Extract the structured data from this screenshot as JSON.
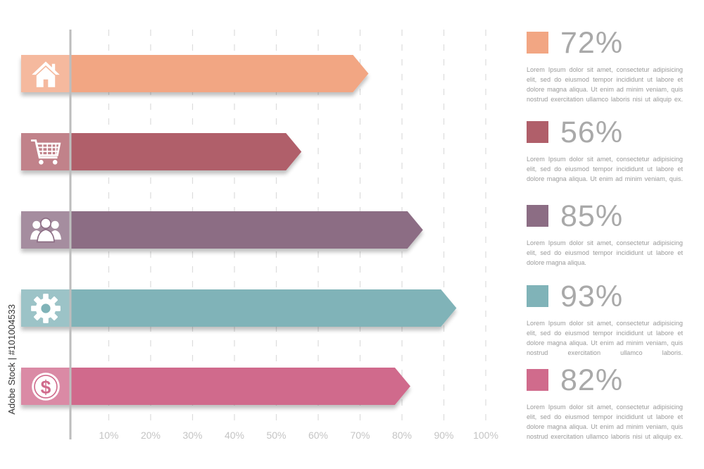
{
  "chart_data": {
    "type": "bar",
    "orientation": "horizontal",
    "categories": [
      "home",
      "shopping",
      "people",
      "settings",
      "finance"
    ],
    "values": [
      72,
      56,
      85,
      93,
      82
    ],
    "value_suffix": "%",
    "xlim": [
      0,
      100
    ],
    "x_ticks": [
      "10%",
      "20%",
      "30%",
      "40%",
      "50%",
      "60%",
      "70%",
      "80%",
      "90%",
      "100%"
    ],
    "grid": "vertical dashed",
    "legend_position": "right",
    "colors": [
      "#f2a683",
      "#b05f6a",
      "#8c6d84",
      "#80b3b8",
      "#d06b8c"
    ],
    "icons": [
      "home-icon",
      "shopping-cart-icon",
      "people-icon",
      "gear-icon",
      "dollar-icon"
    ]
  },
  "legend": [
    {
      "label": "72%",
      "text": "Lorem Ipsum dolor sit amet, consectetur adipisicing elit, sed do eiusmod tempor incididunt ut labore et dolore magna aliqua. Ut enim ad minim veniam, quis nostrud exercitation ullamco laboris nisi ut aliquip ex."
    },
    {
      "label": "56%",
      "text": "Lorem Ipsum dolor sit amet, consectetur adipisicing elit, sed do eiusmod tempor incididunt ut labore et dolore magna aliqua. Ut enim ad minim veniam, quis."
    },
    {
      "label": "85%",
      "text": "Lorem Ipsum dolor sit amet, consectetur adipisicing elit, sed do eiusmod tempor incididunt ut labore et dolore magna aliqua."
    },
    {
      "label": "93%",
      "text": "Lorem Ipsum dolor sit amet, consectetur adipisicing elit, sed do eiusmod tempor incididunt ut labore et dolore magna aliqua. Ut enim ad minim veniam, quis nostrud exercitation ullamco laboris."
    },
    {
      "label": "82%",
      "text": "Lorem Ipsum dolor sit amet, consectetur adipisicing elit, sed do eiusmod tempor incididunt ut labore et dolore magna aliqua. Ut enim ad minim veniam, quis nostrud exercitation ullamco laboris nisi ut aliquip ex."
    }
  ],
  "watermark": "Adobe Stock | #101004533"
}
